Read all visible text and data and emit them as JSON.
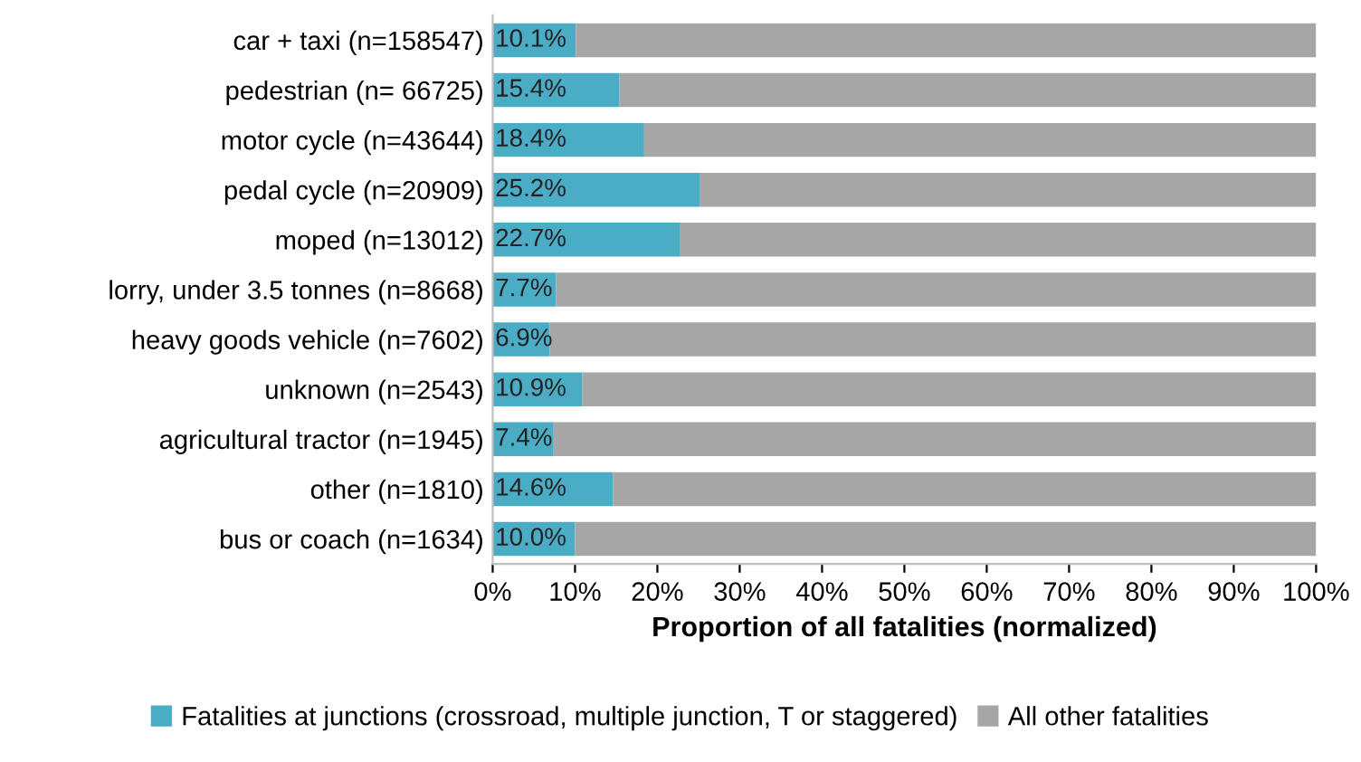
{
  "chart_data": {
    "type": "bar",
    "orientation": "horizontal",
    "stacked": true,
    "xlabel": "Proportion of all fatalities (normalized)",
    "categories": [
      "car + taxi (n=158547)",
      "pedestrian (n= 66725)",
      "motor cycle (n=43644)",
      "pedal cycle (n=20909)",
      "moped (n=13012)",
      "lorry, under 3.5 tonnes (n=8668)",
      "heavy goods vehicle (n=7602)",
      "unknown (n=2543)",
      "agricultural tractor (n=1945)",
      "other (n=1810)",
      "bus or coach (n=1634)"
    ],
    "series": [
      {
        "name": "Fatalities at junctions (crossroad, multiple junction, T or staggered)",
        "color": "#4bacc6",
        "values": [
          10.1,
          15.4,
          18.4,
          25.2,
          22.7,
          7.7,
          6.9,
          10.9,
          7.4,
          14.6,
          10.0
        ],
        "value_labels": [
          "10.1%",
          "15.4%",
          "18.4%",
          "25.2%",
          "22.7%",
          "7.7%",
          "6.9%",
          "10.9%",
          "7.4%",
          "14.6%",
          "10.0%"
        ]
      },
      {
        "name": "All other fatalities",
        "color": "#a6a6a6",
        "values": [
          89.9,
          84.6,
          81.6,
          74.8,
          77.3,
          92.3,
          93.1,
          89.1,
          92.6,
          85.4,
          90.0
        ]
      }
    ],
    "xlim": [
      0,
      100
    ],
    "xticks": [
      {
        "value": 0,
        "label": "0%"
      },
      {
        "value": 10,
        "label": "10%"
      },
      {
        "value": 20,
        "label": "20%"
      },
      {
        "value": 30,
        "label": "30%"
      },
      {
        "value": 40,
        "label": "40%"
      },
      {
        "value": 50,
        "label": "50%"
      },
      {
        "value": 60,
        "label": "60%"
      },
      {
        "value": 70,
        "label": "70%"
      },
      {
        "value": 80,
        "label": "80%"
      },
      {
        "value": 90,
        "label": "90%"
      },
      {
        "value": 100,
        "label": "100%"
      }
    ],
    "legend": "bottom"
  }
}
